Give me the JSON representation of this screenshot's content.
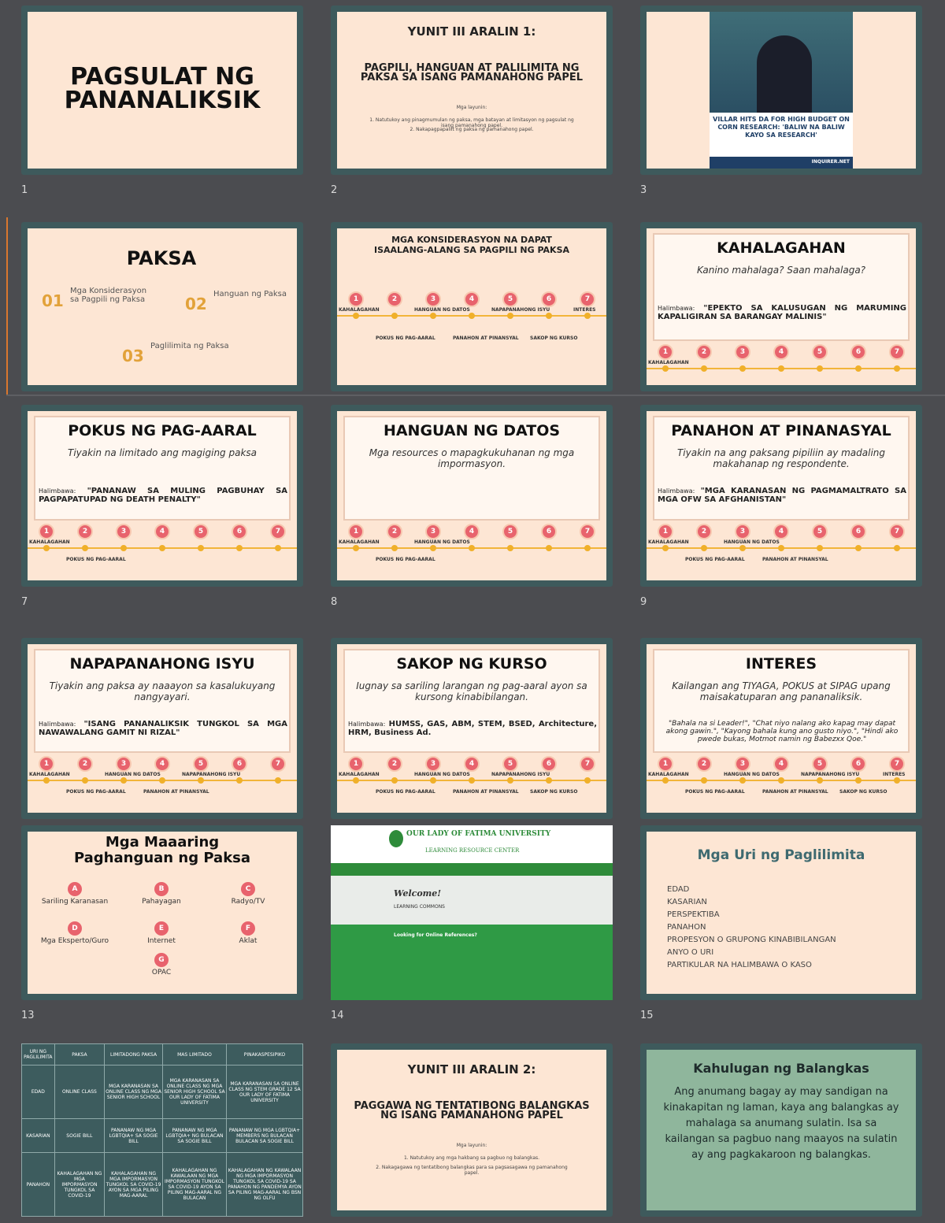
{
  "steps": [
    "1",
    "2",
    "3",
    "4",
    "5",
    "6",
    "7"
  ],
  "slides": [
    {
      "number": "1",
      "title": "PAGSULAT NG PANANALIKSIK"
    },
    {
      "number": "2",
      "heading": "YUNIT III ARALIN 1:",
      "title": "PAGPILI, HANGUAN AT PALILIMITA NG PAKSA SA ISANG PAMANAHONG PAPEL",
      "subtitle": "Mga layunin:",
      "items": [
        "1. Natutukoy ang pinagmumulan ng paksa, mga batayan at limitasyon ng pagsulat ng isang pamanahong papel.",
        "2. Nakapagpapaliit ng paksa ng pamanahong papel."
      ]
    },
    {
      "number": "3",
      "caption": "VILLAR HITS DA FOR HIGH BUDGET ON CORN RESEARCH: 'BALIW NA BALIW KAYO SA RESEARCH'",
      "source": "INQUIRER.NET"
    },
    {
      "title": "PAKSA",
      "items": [
        {
          "num": "01",
          "text": "Mga Konsiderasyon sa Pagpili ng Paksa"
        },
        {
          "num": "02",
          "text": "Hanguan ng Paksa"
        },
        {
          "num": "03",
          "text": "Paglilimita ng Paksa"
        }
      ]
    },
    {
      "title": "MGA KONSIDERASYON NA DAPAT ISAALANG-ALANG SA PAGPILI NG PAKSA",
      "labels": [
        "KAHALAGAHAN",
        "POKUS NG PAG-AARAL",
        "HANGUAN NG DATOS",
        "PANAHON AT PINANSYAL",
        "NAPAPANAHONG ISYU",
        "SAKOP NG KURSO",
        "INTERES"
      ]
    },
    {
      "title": "KAHALAGAHAN",
      "text": "Kanino mahalaga? Saan mahalaga?",
      "example_label": "Halimbawa:",
      "example": "\"EPEKTO SA KALUSUGAN NG MARUMING KAPALIGIRAN SA BARANGAY MALINIS\"",
      "labels": [
        "KAHALAGAHAN"
      ]
    },
    {
      "number": "7",
      "title": "POKUS NG PAG-AARAL",
      "text": "Tiyakin na limitado ang magiging paksa",
      "example_label": "Halimbawa:",
      "example": "\"PANANAW SA MULING PAGBUHAY SA PAGPAPATUPAD NG DEATH PENALTY\"",
      "labels": [
        "KAHALAGAHAN",
        "POKUS NG PAG-AARAL"
      ]
    },
    {
      "number": "8",
      "title": "HANGUAN NG DATOS",
      "text": "Mga resources o mapagkukuhanan ng mga impormasyon.",
      "labels": [
        "KAHALAGAHAN",
        "POKUS NG PAG-AARAL",
        "HANGUAN NG DATOS"
      ]
    },
    {
      "number": "9",
      "title": "PANAHON AT PINANASYAL",
      "text": "Tiyakin na ang paksang pipiliin ay madaling makahanap ng respondente.",
      "example_label": "Halimbawa:",
      "example": "\"MGA KARANASAN NG PAGMAMALTRATO SA MGA OFW SA AFGHANISTAN\"",
      "labels": [
        "KAHALAGAHAN",
        "POKUS NG PAG-AARAL",
        "HANGUAN NG DATOS",
        "PANAHON AT PINANSYAL"
      ]
    },
    {
      "title": "NAPAPANAHONG ISYU",
      "text": "Tiyakin ang paksa ay naaayon sa kasalukuyang nangyayari.",
      "example_label": "Halimbawa:",
      "example": "\"ISANG PANANALIKSIK TUNGKOL SA MGA NAWAWALANG GAMIT NI RIZAL\"",
      "labels": [
        "KAHALAGAHAN",
        "POKUS NG PAG-AARAL",
        "HANGUAN NG DATOS",
        "PANAHON AT PINANSYAL",
        "NAPAPANAHONG ISYU"
      ]
    },
    {
      "title": "SAKOP NG KURSO",
      "text": "Iugnay sa sariling larangan ng pag-aaral ayon sa kursong kinabibilangan.",
      "example_label": "Halimbawa:",
      "example": "HUMSS, GAS, ABM, STEM, BSED, Architecture, HRM, Business Ad.",
      "labels": [
        "KAHALAGAHAN",
        "POKUS NG PAG-AARAL",
        "HANGUAN NG DATOS",
        "PANAHON AT PINANSYAL",
        "NAPAPANAHONG ISYU",
        "SAKOP NG KURSO"
      ]
    },
    {
      "title": "INTERES",
      "text": "Kailangan ang TIYAGA, POKUS at SIPAG upang maisakatuparan ang pananaliksik.",
      "example": "\"Bahala na si Leader!\", \"Chat niyo nalang ako kapag may dapat akong gawin.\", \"Kayong bahala kung ano gusto niyo.\", \"Hindi ako pwede bukas, Motmot namin ng Babezxx Qoe.\"",
      "labels": [
        "KAHALAGAHAN",
        "POKUS NG PAG-AARAL",
        "HANGUAN NG DATOS",
        "PANAHON AT PINANSYAL",
        "NAPAPANAHONG ISYU",
        "SAKOP NG KURSO",
        "INTERES"
      ]
    },
    {
      "number": "13",
      "title": "Mga Maaaring Paghanguan ng Paksa",
      "items": [
        {
          "letter": "A",
          "text": "Sariling Karanasan"
        },
        {
          "letter": "B",
          "text": "Pahayagan"
        },
        {
          "letter": "C",
          "text": "Radyo/TV"
        },
        {
          "letter": "D",
          "text": "Mga Eksperto/Guro"
        },
        {
          "letter": "E",
          "text": "Internet"
        },
        {
          "letter": "F",
          "text": "Aklat"
        },
        {
          "letter": "G",
          "text": "OPAC"
        }
      ]
    },
    {
      "number": "14",
      "university": "OUR LADY OF FATIMA UNIVERSITY",
      "center": "LEARNING RESOURCE CENTER",
      "welcome": "Welcome!",
      "commons": "LEARNING COMMONS",
      "prompt": "Looking for Online References?"
    },
    {
      "number": "15",
      "title": "Mga Uri ng Paglilimita",
      "items": [
        "EDAD",
        "KASARIAN",
        "PERSPEKTIBA",
        "PANAHON",
        "PROPESYON O GRUPONG KINABIBILANGAN",
        "ANYO O URI",
        "PARTIKULAR NA HALIMBAWA O KASO"
      ]
    },
    {
      "table": {
        "header": [
          "URI NG PAGLILIMITA",
          "PAKSA",
          "LIMITADONG PAKSA",
          "MAS LIMITADO",
          "PINAKASPESIPIKO"
        ],
        "rows": [
          [
            "EDAD",
            "ONLINE CLASS",
            "MGA KARANASAN SA ONLINE CLASS NG MGA SENIOR HIGH SCHOOL",
            "MGA KARANASAN SA ONLINE CLASS NG MGA SENIOR HIGH SCHOOL SA OUR LADY OF FATIMA UNIVERSITY",
            "MGA KARANASAN SA ONLINE CLASS NG STEM GRADE 12 SA OUR LADY OF FATIMA UNIVERSITY"
          ],
          [
            "KASARIAN",
            "SOGIE BILL",
            "PANANAW NG MGA LGBTQIA+ SA SOGIE BILL",
            "PANANAW NG MGA LGBTQIA+ NG BULACAN SA SOGIE BILL",
            "PANANAW NG MGA LGBTQIA+ MEMBERS NG BULACAN BULACAN SA SOGIE BILL"
          ],
          [
            "PANAHON",
            "KAHALAGAHAN NG MGA IMPORMASYON TUNGKOL SA COVID-19",
            "KAHALAGAHAN NG MGA IMPORMASYON TUNGKOL SA COVID-19 AYON SA MGA PILING MAG-AARAL",
            "KAHALAGAHAN NG KAWALAAN NG MGA IMPORMASYON TUNGKOL SA COVID-19 AYON SA PILING MAG-AARAL NG BULACAN",
            "KAHALAGAHAN NG KAWALAAN NG MGA IMPORMASYON TUNGKOL SA COVID-19 SA PANAHON NG PANDEMYA AYON SA PILING MAG-AARAL NG BSN NG OLFU"
          ]
        ]
      }
    },
    {
      "heading": "YUNIT III ARALIN 2:",
      "title": "PAGGAWA NG TENTATIBONG BALANGKAS NG ISANG PAMANAHONG PAPEL",
      "subtitle": "Mga layunin:",
      "items": [
        "1. Natutukoy ang mga hakbang sa pagbuo ng balangkas.",
        "2. Nakagagawa ng tentatibong balangkas para sa pagsasagawa ng pamanahong papel."
      ]
    },
    {
      "title": "Kahulugan ng Balangkas",
      "text": "Ang anumang bagay ay may sandigan na kinakapitan ng laman, kaya ang balangkas ay mahalaga sa anumang sulatin. Isa sa kailangan sa pagbuo nang maayos na sulatin ay ang pagkakaroon ng balangkas."
    }
  ]
}
